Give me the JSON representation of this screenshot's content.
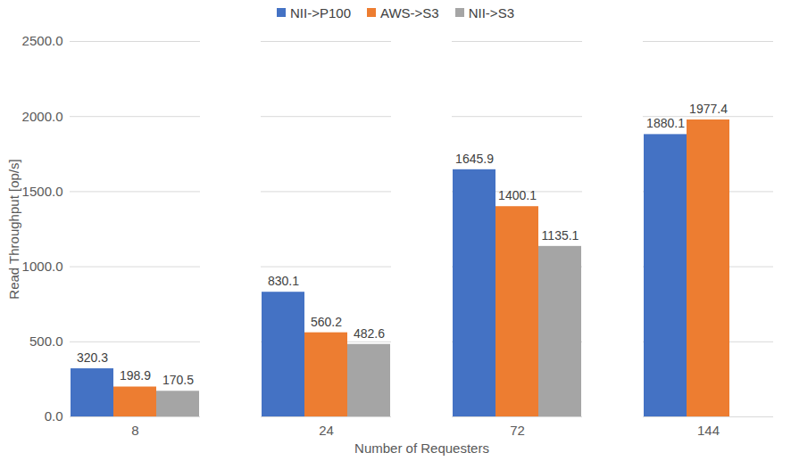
{
  "chart_data": {
    "type": "bar",
    "categories": [
      "8",
      "24",
      "72",
      "144"
    ],
    "series": [
      {
        "name": "NII->P100",
        "color": "#4472c4",
        "values": [
          320.3,
          830.1,
          1645.9,
          1880.1
        ]
      },
      {
        "name": "AWS->S3",
        "color": "#ed7d31",
        "values": [
          198.9,
          560.2,
          1400.1,
          1977.4
        ]
      },
      {
        "name": "NII->S3",
        "color": "#a5a5a5",
        "values": [
          170.5,
          482.6,
          1135.1,
          null
        ]
      }
    ],
    "x_label": "Number of Requesters",
    "y_label": "Read Throughput [op/s]",
    "ylim": [
      0,
      2500
    ],
    "yticks": [
      {
        "value": 0,
        "label": "0.0"
      },
      {
        "value": 500,
        "label": "500.0"
      },
      {
        "value": 1000,
        "label": "1000.0"
      },
      {
        "value": 1500,
        "label": "1500.0"
      },
      {
        "value": 2000,
        "label": "2000.0"
      },
      {
        "value": 2500,
        "label": "2500.0"
      }
    ],
    "grid": true,
    "legend": "top",
    "data_labels": true
  }
}
